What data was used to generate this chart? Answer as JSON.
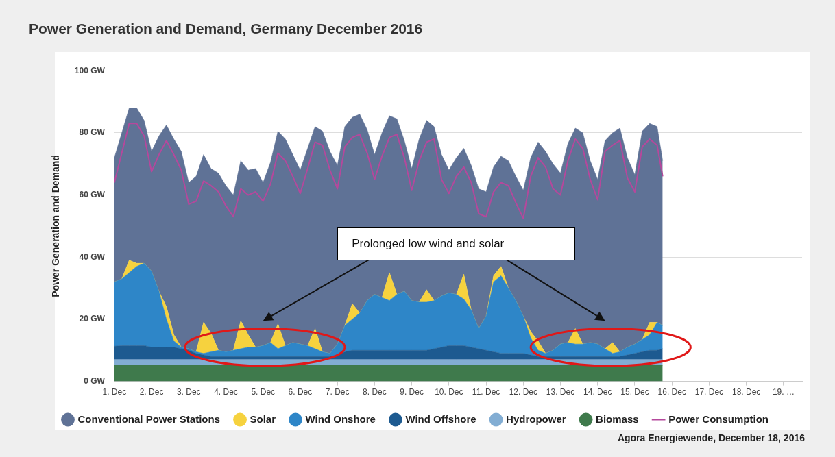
{
  "chart_data": {
    "type": "area",
    "title": "Power Generation and Demand, Germany December 2016",
    "ylabel": "Power Generation and Demand",
    "annotations": [
      "Prolonged low wind and solar",
      "Agora Energiewende, December 18, 2016"
    ],
    "stacked": true,
    "grid": "y",
    "legend": "bottom",
    "marker": "none",
    "xlim": [
      "2016-12-01",
      "2016-12-19T12:00"
    ],
    "xticks": [
      {
        "value": "2016-12-01",
        "label": "1. Dec"
      },
      {
        "value": "2016-12-02",
        "label": "2. Dec"
      },
      {
        "value": "2016-12-03",
        "label": "3. Dec"
      },
      {
        "value": "2016-12-04",
        "label": "4. Dec"
      },
      {
        "value": "2016-12-05",
        "label": "5. Dec"
      },
      {
        "value": "2016-12-06",
        "label": "6. Dec"
      },
      {
        "value": "2016-12-07",
        "label": "7. Dec"
      },
      {
        "value": "2016-12-08",
        "label": "8. Dec"
      },
      {
        "value": "2016-12-09",
        "label": "9. Dec"
      },
      {
        "value": "2016-12-10",
        "label": "10. Dec"
      },
      {
        "value": "2016-12-11",
        "label": "11. Dec"
      },
      {
        "value": "2016-12-12",
        "label": "12. Dec"
      },
      {
        "value": "2016-12-13",
        "label": "13. Dec"
      },
      {
        "value": "2016-12-14",
        "label": "14. Dec"
      },
      {
        "value": "2016-12-15",
        "label": "15. Dec"
      },
      {
        "value": "2016-12-16",
        "label": "16. Dec"
      },
      {
        "value": "2016-12-17",
        "label": "17. Dec"
      },
      {
        "value": "2016-12-18",
        "label": "18. Dec"
      },
      {
        "value": "2016-12-19",
        "label": "19. …"
      }
    ],
    "ylim": [
      0,
      100
    ],
    "yticks": [
      {
        "value": 0,
        "label": "0 GW"
      },
      {
        "value": 20,
        "label": "20 GW"
      },
      {
        "value": 40,
        "label": "40 GW"
      },
      {
        "value": 60,
        "label": "60 GW"
      },
      {
        "value": 80,
        "label": "80 GW"
      },
      {
        "value": 100,
        "label": "100 GW"
      }
    ],
    "x": [
      "2016-12-01T00:00",
      "2016-12-01T04:48",
      "2016-12-01T09:36",
      "2016-12-01T14:24",
      "2016-12-01T19:12",
      "2016-12-02T00:00",
      "2016-12-02T04:48",
      "2016-12-02T09:36",
      "2016-12-02T14:24",
      "2016-12-02T19:12",
      "2016-12-03T00:00",
      "2016-12-03T04:48",
      "2016-12-03T09:36",
      "2016-12-03T14:24",
      "2016-12-03T19:12",
      "2016-12-04T00:00",
      "2016-12-04T04:48",
      "2016-12-04T09:36",
      "2016-12-04T14:24",
      "2016-12-04T19:12",
      "2016-12-05T00:00",
      "2016-12-05T04:48",
      "2016-12-05T09:36",
      "2016-12-05T14:24",
      "2016-12-05T19:12",
      "2016-12-06T00:00",
      "2016-12-06T04:48",
      "2016-12-06T09:36",
      "2016-12-06T14:24",
      "2016-12-06T19:12",
      "2016-12-07T00:00",
      "2016-12-07T04:48",
      "2016-12-07T09:36",
      "2016-12-07T14:24",
      "2016-12-07T19:12",
      "2016-12-08T00:00",
      "2016-12-08T04:48",
      "2016-12-08T09:36",
      "2016-12-08T14:24",
      "2016-12-08T19:12",
      "2016-12-09T00:00",
      "2016-12-09T04:48",
      "2016-12-09T09:36",
      "2016-12-09T14:24",
      "2016-12-09T19:12",
      "2016-12-10T00:00",
      "2016-12-10T04:48",
      "2016-12-10T09:36",
      "2016-12-10T14:24",
      "2016-12-10T19:12",
      "2016-12-11T00:00",
      "2016-12-11T04:48",
      "2016-12-11T09:36",
      "2016-12-11T14:24",
      "2016-12-11T19:12",
      "2016-12-12T00:00",
      "2016-12-12T04:48",
      "2016-12-12T09:36",
      "2016-12-12T14:24",
      "2016-12-12T19:12",
      "2016-12-13T00:00",
      "2016-12-13T04:48",
      "2016-12-13T09:36",
      "2016-12-13T14:24",
      "2016-12-13T19:12",
      "2016-12-14T00:00",
      "2016-12-14T04:48",
      "2016-12-14T09:36",
      "2016-12-14T14:24",
      "2016-12-14T19:12",
      "2016-12-15T00:00",
      "2016-12-15T04:48",
      "2016-12-15T09:36",
      "2016-12-15T14:24",
      "2016-12-15T18:00"
    ],
    "series": [
      {
        "name": "Biomass",
        "type": "area",
        "color": "#3f7a4c",
        "values": [
          5.2,
          5.2,
          5.2,
          5.2,
          5.2,
          5.2,
          5.2,
          5.2,
          5.2,
          5.2,
          5.2,
          5.2,
          5.2,
          5.2,
          5.2,
          5.2,
          5.2,
          5.2,
          5.2,
          5.2,
          5.2,
          5.2,
          5.2,
          5.2,
          5.2,
          5.2,
          5.2,
          5.2,
          5.2,
          5.2,
          5.2,
          5.2,
          5.2,
          5.2,
          5.2,
          5.2,
          5.2,
          5.2,
          5.2,
          5.2,
          5.2,
          5.2,
          5.2,
          5.2,
          5.2,
          5.2,
          5.2,
          5.2,
          5.2,
          5.2,
          5.2,
          5.2,
          5.2,
          5.2,
          5.2,
          5.2,
          5.2,
          5.2,
          5.2,
          5.2,
          5.2,
          5.2,
          5.2,
          5.2,
          5.2,
          5.2,
          5.2,
          5.2,
          5.2,
          5.2,
          5.2,
          5.2,
          5.2,
          5.2,
          5.2
        ]
      },
      {
        "name": "Hydropower",
        "type": "area",
        "color": "#82add3",
        "values": [
          1.8,
          1.8,
          1.8,
          1.8,
          1.8,
          1.8,
          1.8,
          1.8,
          1.8,
          1.8,
          1.8,
          1.8,
          1.8,
          1.8,
          1.8,
          1.8,
          1.8,
          1.8,
          1.8,
          1.8,
          1.8,
          1.8,
          1.8,
          1.8,
          1.8,
          1.8,
          1.8,
          1.8,
          1.8,
          1.8,
          1.8,
          1.8,
          1.8,
          1.8,
          1.8,
          1.8,
          1.8,
          1.8,
          1.8,
          1.8,
          1.8,
          1.8,
          1.8,
          1.8,
          1.8,
          1.8,
          1.8,
          1.8,
          1.8,
          1.8,
          1.8,
          1.8,
          1.8,
          1.8,
          1.8,
          1.8,
          1.8,
          1.8,
          1.8,
          1.8,
          1.8,
          1.8,
          1.8,
          1.8,
          1.8,
          1.8,
          1.8,
          1.8,
          1.8,
          1.8,
          1.8,
          1.8,
          1.8,
          1.8,
          1.8
        ]
      },
      {
        "name": "Wind Offshore",
        "type": "area",
        "color": "#1d5a90",
        "values": [
          4.3,
          4.5,
          4.5,
          4.5,
          4.5,
          4,
          4,
          4,
          4,
          3.5,
          3,
          2,
          1.5,
          1,
          1,
          1,
          1,
          1,
          1,
          1,
          1,
          1,
          1,
          1,
          1,
          1,
          1,
          1,
          1,
          1,
          1.5,
          2.5,
          3,
          3,
          3,
          3,
          3,
          3,
          3,
          3,
          3,
          3,
          3,
          3.5,
          4,
          4.5,
          4.5,
          4.5,
          4,
          3.5,
          3,
          2.5,
          2,
          2,
          2,
          2,
          1.5,
          1,
          1,
          1,
          1,
          1,
          1,
          1,
          1,
          1,
          1,
          1,
          1,
          1.5,
          2,
          2.5,
          3,
          3,
          3.5
        ]
      },
      {
        "name": "Wind Onshore",
        "type": "area",
        "color": "#2e86c8",
        "values": [
          20.7,
          21.5,
          23.5,
          25.5,
          26.5,
          24.5,
          18,
          9,
          2,
          0.5,
          0.5,
          0.5,
          0.5,
          1.5,
          2,
          1.5,
          2,
          2.5,
          3,
          3,
          3.5,
          4.5,
          2.5,
          3.5,
          4.5,
          4,
          3.5,
          2.5,
          1.5,
          1,
          3.5,
          8.5,
          10,
          12,
          16,
          18,
          17,
          16,
          18,
          19,
          16,
          15.5,
          15.5,
          15.5,
          16.5,
          17,
          16.5,
          15,
          12,
          6.5,
          11,
          22.5,
          25,
          21,
          17,
          12,
          5.5,
          2,
          1,
          2,
          4,
          4.5,
          4,
          4,
          4.5,
          4,
          2.5,
          1,
          1.5,
          2.5,
          3,
          4,
          5,
          9,
          7.5
        ]
      },
      {
        "name": "Solar",
        "type": "area",
        "color": "#f6d23e",
        "values": [
          0,
          0,
          4,
          1,
          0,
          0,
          0,
          4,
          2,
          0,
          0,
          0,
          10,
          6,
          0,
          0,
          0,
          9,
          4,
          0,
          0,
          0,
          8,
          0,
          0,
          0,
          0,
          6.5,
          0,
          0,
          0,
          0,
          5,
          0,
          0,
          0,
          0,
          9,
          0,
          0,
          0,
          0,
          4,
          0,
          0,
          0,
          0,
          8,
          0,
          0,
          0,
          2,
          3,
          0,
          0,
          0,
          2,
          3,
          0,
          0,
          0,
          0,
          5,
          0,
          0,
          0,
          0,
          3.5,
          0,
          0,
          0,
          0,
          4,
          0,
          0
        ]
      },
      {
        "name": "Conventional Power Stations",
        "type": "area",
        "color": "#5f7296",
        "values": [
          40,
          47,
          49,
          50,
          46,
          38.5,
          50,
          58.5,
          63,
          63,
          53.5,
          56.5,
          54,
          53,
          57,
          53.5,
          50,
          51.5,
          53,
          57.5,
          52.5,
          58,
          62,
          66.5,
          60.5,
          56,
          63.5,
          65,
          71,
          65,
          57.5,
          64,
          60,
          64,
          55,
          45,
          53,
          50.5,
          56.5,
          48.5,
          42.5,
          52.5,
          54.5,
          56,
          45.5,
          39.5,
          44,
          40.5,
          46.5,
          45,
          40,
          35,
          35.5,
          41,
          40,
          40.5,
          56,
          64,
          65,
          60,
          55,
          64,
          64.5,
          68,
          58.5,
          53,
          67,
          67.5,
          72,
          61,
          54.5,
          67,
          64,
          63,
          53
        ]
      },
      {
        "name": "Power Consumption",
        "type": "line",
        "color": "#b5489c",
        "values": [
          64,
          73.5,
          83,
          83,
          79,
          67.5,
          73,
          77.5,
          73,
          68,
          57,
          58,
          64.5,
          63,
          61,
          56.5,
          53,
          62,
          60,
          61,
          58,
          63.5,
          73.5,
          71,
          66,
          60.5,
          68.5,
          77,
          76,
          68,
          62,
          75.5,
          78.5,
          79.5,
          73.5,
          65,
          72.5,
          78.5,
          79.5,
          72,
          61.5,
          71,
          77,
          78,
          65,
          60.5,
          66,
          69,
          64,
          54,
          53,
          61,
          64,
          63,
          57.5,
          52.5,
          66,
          72,
          69,
          62,
          60,
          71,
          78,
          75,
          65,
          58.5,
          74,
          76,
          77.5,
          65.5,
          61,
          75.5,
          78,
          76,
          66
        ]
      }
    ]
  }
}
